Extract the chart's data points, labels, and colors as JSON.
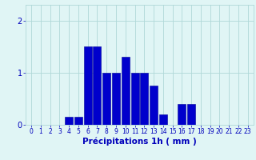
{
  "values": [
    0,
    0,
    0,
    0,
    0.15,
    0.15,
    1.5,
    1.5,
    1.0,
    1.0,
    1.3,
    1.0,
    1.0,
    0.75,
    0.2,
    0,
    0.4,
    0.4,
    0,
    0,
    0,
    0,
    0,
    0
  ],
  "categories": [
    0,
    1,
    2,
    3,
    4,
    5,
    6,
    7,
    8,
    9,
    10,
    11,
    12,
    13,
    14,
    15,
    16,
    17,
    18,
    19,
    20,
    21,
    22,
    23
  ],
  "bar_color": "#0000cc",
  "bar_edge_color": "#000099",
  "background_color": "#e0f5f5",
  "grid_color": "#b0d8d8",
  "xlabel": "Précipitations 1h ( mm )",
  "xlabel_fontsize": 7.5,
  "tick_color": "#0000bb",
  "tick_fontsize": 5.5,
  "ytick_fontsize": 7,
  "yticks": [
    0,
    1,
    2
  ],
  "ylim": [
    0,
    2.3
  ],
  "xlim": [
    -0.6,
    23.6
  ]
}
